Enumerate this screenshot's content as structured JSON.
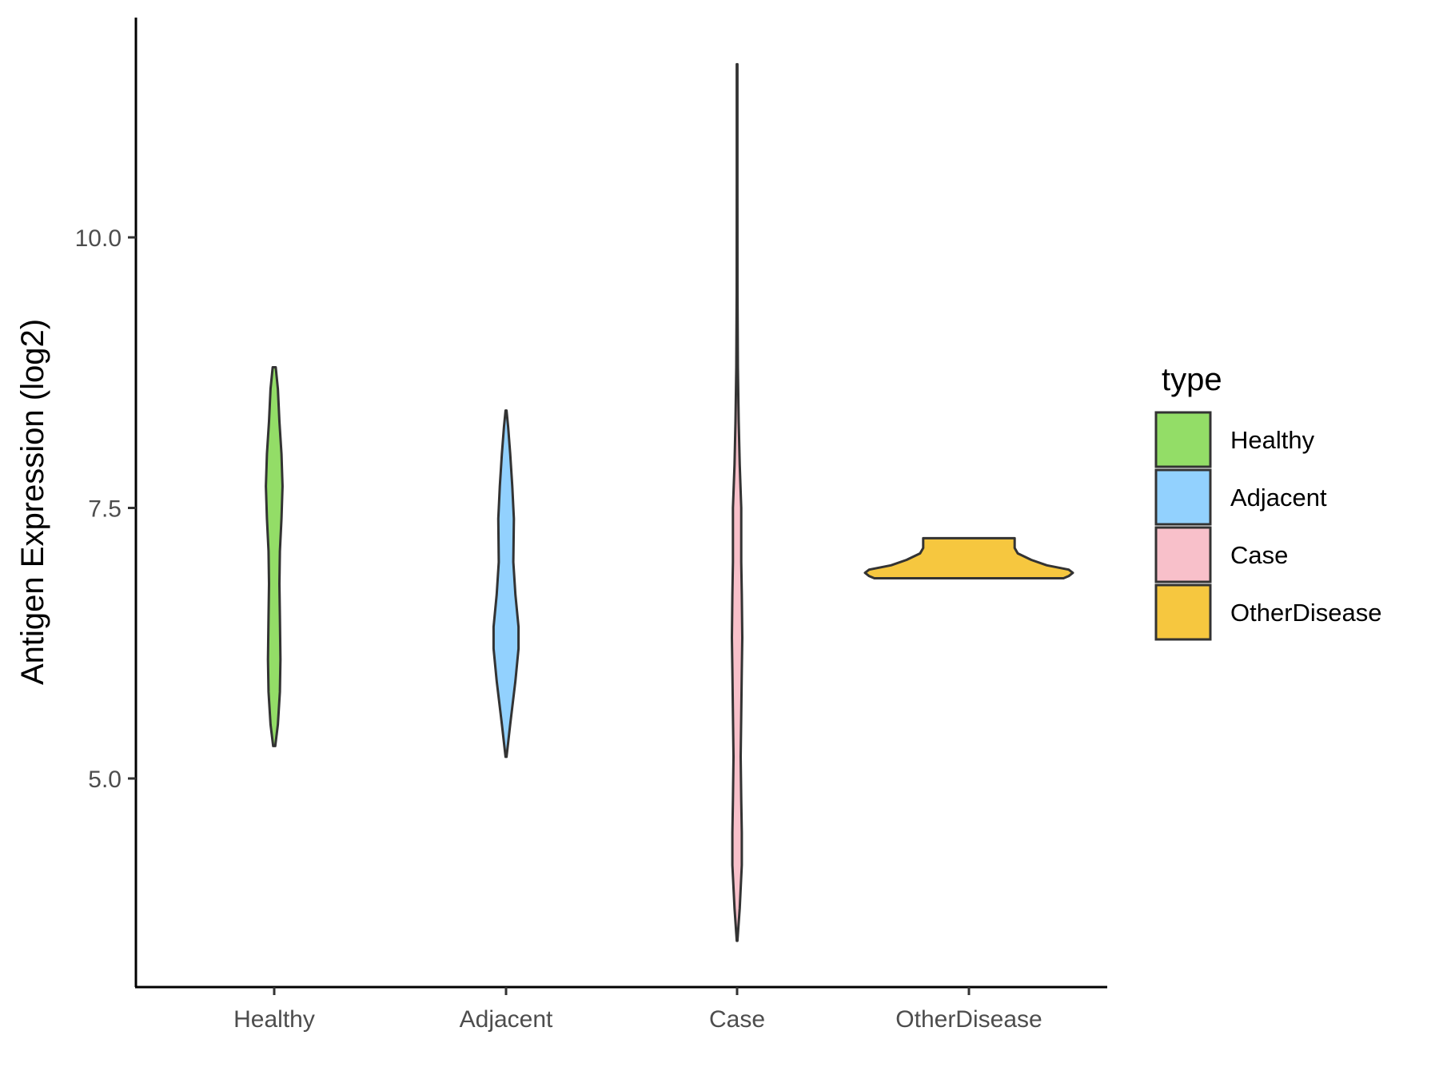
{
  "chart_data": {
    "type": "violin",
    "title": "",
    "xlabel": "",
    "ylabel": "Antigen Expression (log2)",
    "categories": [
      "Healthy",
      "Adjacent",
      "Case",
      "OtherDisease"
    ],
    "y_ticks": [
      {
        "value": 5.0,
        "label": "5.0"
      },
      {
        "value": 7.5,
        "label": "7.5"
      },
      {
        "value": 10.0,
        "label": "10.0"
      }
    ],
    "ylim": [
      3.3,
      12.1
    ],
    "series": [
      {
        "name": "Healthy",
        "color": "#93dd67",
        "ymin": 5.3,
        "ymax": 8.8,
        "profile": [
          [
            5.3,
            0.01
          ],
          [
            5.5,
            0.035
          ],
          [
            5.8,
            0.055
          ],
          [
            6.1,
            0.06
          ],
          [
            6.5,
            0.055
          ],
          [
            6.8,
            0.05
          ],
          [
            7.1,
            0.055
          ],
          [
            7.4,
            0.07
          ],
          [
            7.7,
            0.08
          ],
          [
            8.0,
            0.07
          ],
          [
            8.3,
            0.05
          ],
          [
            8.6,
            0.035
          ],
          [
            8.8,
            0.015
          ]
        ]
      },
      {
        "name": "Adjacent",
        "color": "#92d1fe",
        "ymin": 5.2,
        "ymax": 8.4,
        "profile": [
          [
            5.2,
            0.005
          ],
          [
            5.5,
            0.04
          ],
          [
            5.9,
            0.09
          ],
          [
            6.2,
            0.12
          ],
          [
            6.4,
            0.12
          ],
          [
            6.7,
            0.09
          ],
          [
            7.0,
            0.07
          ],
          [
            7.4,
            0.075
          ],
          [
            7.7,
            0.06
          ],
          [
            8.0,
            0.04
          ],
          [
            8.25,
            0.02
          ],
          [
            8.4,
            0.005
          ]
        ]
      },
      {
        "name": "Case",
        "color": "#f8c0ca",
        "ymin": 3.5,
        "ymax": 11.6,
        "profile": [
          [
            3.5,
            0.003
          ],
          [
            3.8,
            0.025
          ],
          [
            4.2,
            0.045
          ],
          [
            4.5,
            0.045
          ],
          [
            4.8,
            0.04
          ],
          [
            5.2,
            0.035
          ],
          [
            5.6,
            0.04
          ],
          [
            6.0,
            0.045
          ],
          [
            6.3,
            0.05
          ],
          [
            6.7,
            0.045
          ],
          [
            7.0,
            0.04
          ],
          [
            7.5,
            0.04
          ],
          [
            7.9,
            0.025
          ],
          [
            8.3,
            0.015
          ],
          [
            8.8,
            0.008
          ],
          [
            9.5,
            0.004
          ],
          [
            10.5,
            0.003
          ],
          [
            11.6,
            0.003
          ]
        ]
      },
      {
        "name": "OtherDisease",
        "color": "#f6c73f",
        "ymin": 6.85,
        "ymax": 7.22,
        "profile": [
          [
            6.85,
            0.91
          ],
          [
            6.87,
            0.96
          ],
          [
            6.9,
            1.0
          ],
          [
            6.93,
            0.96
          ],
          [
            6.97,
            0.75
          ],
          [
            7.02,
            0.6
          ],
          [
            7.08,
            0.47
          ],
          [
            7.13,
            0.44
          ],
          [
            7.17,
            0.44
          ],
          [
            7.2,
            0.44
          ],
          [
            7.22,
            0.44
          ]
        ]
      }
    ],
    "legend": {
      "title": "type",
      "position": "right",
      "entries": [
        "Healthy",
        "Adjacent",
        "Case",
        "OtherDisease"
      ]
    }
  }
}
